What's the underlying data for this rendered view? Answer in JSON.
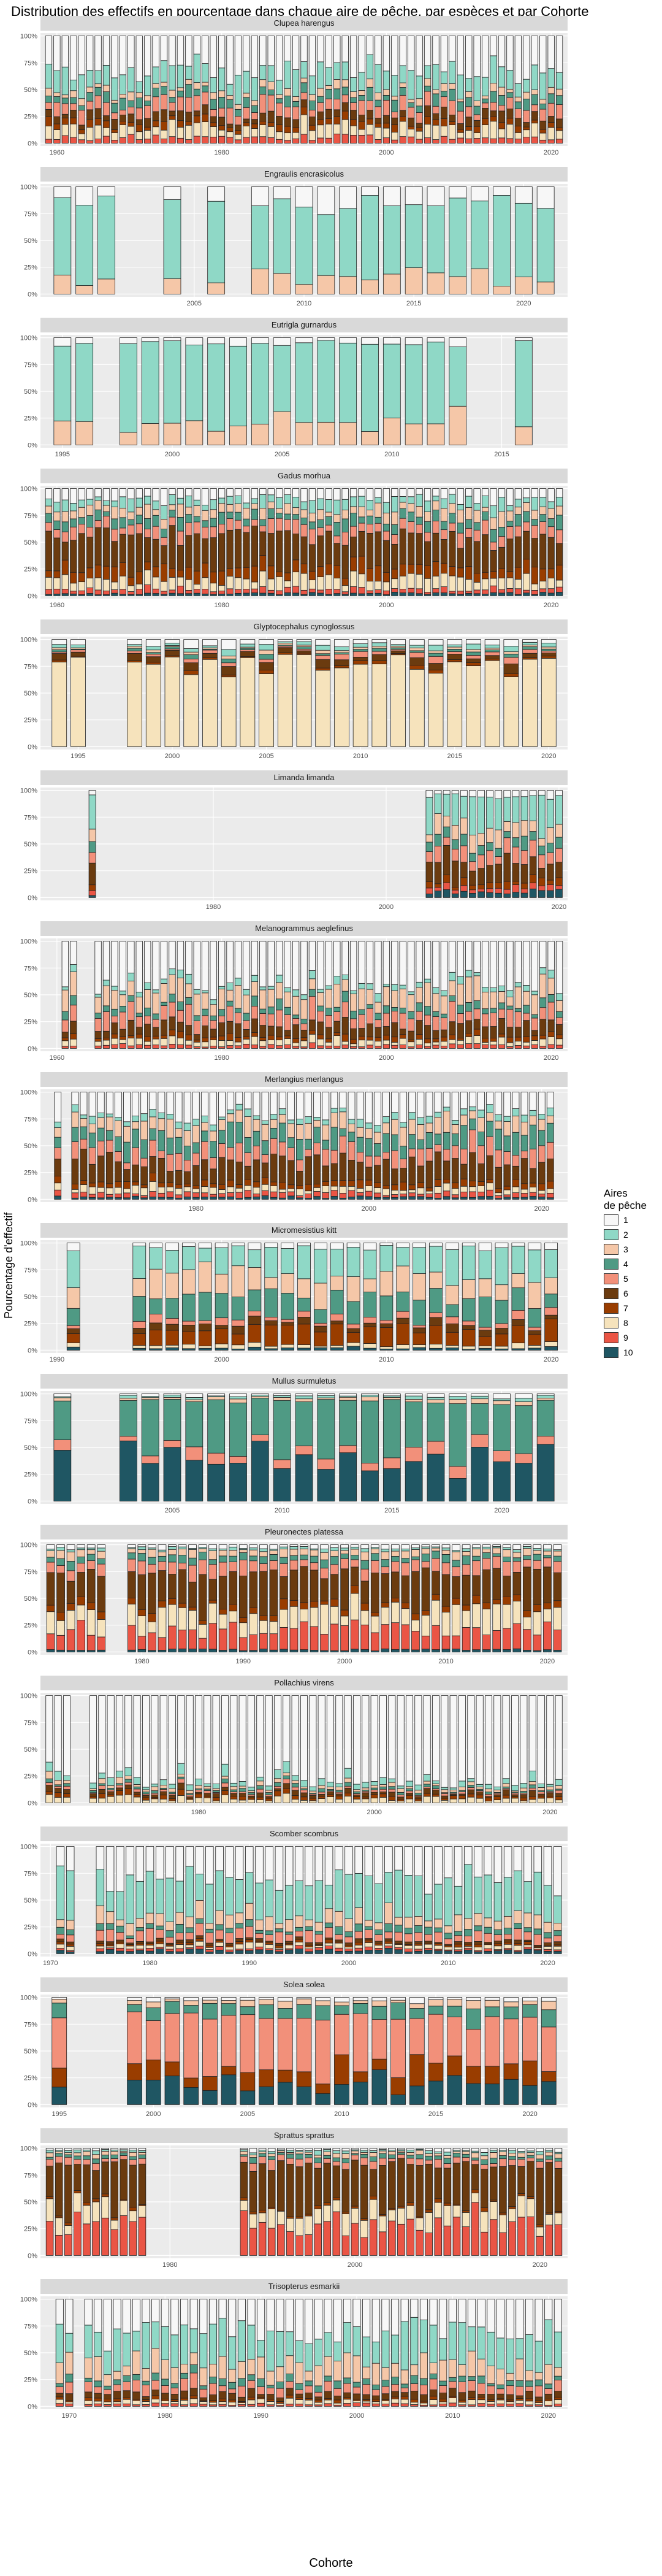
{
  "chart_data": {
    "type": "bar",
    "title": "Distribution des effectifs en pourcentage dans chaque aire de pêche, par espèces et par Cohorte",
    "xlabel": "Cohorte",
    "ylabel": "Pourcentage d'effectif",
    "y_ticks": [
      "0%",
      "25%",
      "50%",
      "75%",
      "100%"
    ],
    "legend": {
      "title": "Aires\nde pêche",
      "position": "right",
      "items": [
        {
          "label": "1",
          "color": "#f7f7f7"
        },
        {
          "label": "2",
          "color": "#8fd8c6"
        },
        {
          "label": "3",
          "color": "#f5c7a8"
        },
        {
          "label": "4",
          "color": "#4f9a84"
        },
        {
          "label": "5",
          "color": "#f2907a"
        },
        {
          "label": "6",
          "color": "#6b3b0f"
        },
        {
          "label": "7",
          "color": "#993d00"
        },
        {
          "label": "8",
          "color": "#f6e3bc"
        },
        {
          "label": "9",
          "color": "#ea5545"
        },
        {
          "label": "10",
          "color": "#1f5663"
        }
      ]
    },
    "panels": [
      {
        "species": "Clupea harengus",
        "xlim": [
          1958,
          2022
        ],
        "xticks": [
          1960,
          1980,
          2000,
          2020
        ],
        "cohorts": [
          [
            1959,
            2021
          ]
        ],
        "gaps": [],
        "profile": "A"
      },
      {
        "species": "Engraulis encrasicolus",
        "xlim": [
          1998,
          2022
        ],
        "xticks": [
          2005,
          2010,
          2015,
          2020
        ],
        "cohorts": [
          [
            1999,
            2021
          ]
        ],
        "gaps": [
          2002,
          2003,
          2005,
          2007
        ],
        "profile": "B"
      },
      {
        "species": "Eutrigla gurnardus",
        "xlim": [
          1994,
          2018
        ],
        "xticks": [
          1995,
          2000,
          2005,
          2010,
          2015
        ],
        "cohorts": [
          [
            1995,
            2016
          ]
        ],
        "gaps": [
          1997,
          2014,
          2015
        ],
        "profile": "C"
      },
      {
        "species": "Gadus morhua",
        "xlim": [
          1958,
          2022
        ],
        "xticks": [
          1960,
          1980,
          2000,
          2020
        ],
        "cohorts": [
          [
            1959,
            2021
          ]
        ],
        "gaps": [],
        "profile": "D"
      },
      {
        "species": "Glyptocephalus cynoglossus",
        "xlim": [
          1993,
          2021
        ],
        "xticks": [
          1995,
          2000,
          2005,
          2010,
          2015,
          2020
        ],
        "cohorts": [
          [
            1994,
            2020
          ]
        ],
        "gaps": [
          1996,
          1997
        ],
        "profile": "E"
      },
      {
        "species": "Limanda limanda",
        "xlim": [
          1960,
          2021
        ],
        "xticks": [
          1980,
          2000,
          2020
        ],
        "cohorts": [
          [
            1966,
            1966
          ],
          [
            2005,
            2020
          ]
        ],
        "gaps": [],
        "profile": "F"
      },
      {
        "species": "Melanogrammus aeglefinus",
        "xlim": [
          1958,
          2022
        ],
        "xticks": [
          1960,
          1980,
          2000,
          2020
        ],
        "cohorts": [
          [
            1961,
            1962
          ],
          [
            1965,
            2021
          ]
        ],
        "gaps": [],
        "profile": "G"
      },
      {
        "species": "Merlangius merlangus",
        "xlim": [
          1962,
          2023
        ],
        "xticks": [
          1980,
          2000,
          2020
        ],
        "cohorts": [
          [
            1964,
            1964
          ],
          [
            1966,
            2021
          ]
        ],
        "gaps": [],
        "profile": "H"
      },
      {
        "species": "Micromesistius kitt",
        "xlim": [
          1989,
          2021
        ],
        "xticks": [
          1990,
          2000,
          2010,
          2020
        ],
        "cohorts": [
          [
            1991,
            2020
          ]
        ],
        "gaps": [
          1992,
          1993,
          1994
        ],
        "profile": "I"
      },
      {
        "species": "Mullus surmuletus",
        "xlim": [
          1999,
          2023
        ],
        "xticks": [
          2005,
          2010,
          2015,
          2020
        ],
        "cohorts": [
          [
            2000,
            2022
          ]
        ],
        "gaps": [
          2001,
          2002
        ],
        "profile": "J"
      },
      {
        "species": "Pleuronectes platessa",
        "xlim": [
          1970,
          2022
        ],
        "xticks": [
          1980,
          1990,
          2000,
          2010,
          2020
        ],
        "cohorts": [
          [
            1971,
            2021
          ]
        ],
        "gaps": [
          1977,
          1978
        ],
        "profile": "K"
      },
      {
        "species": "Pollachius virens",
        "xlim": [
          1962,
          2022
        ],
        "xticks": [
          1980,
          2000,
          2020
        ],
        "cohorts": [
          [
            1963,
            1965
          ],
          [
            1968,
            2021
          ]
        ],
        "gaps": [],
        "profile": "L"
      },
      {
        "species": "Scomber scombrus",
        "xlim": [
          1969,
          2022
        ],
        "xticks": [
          1970,
          1980,
          1990,
          2000,
          2010,
          2020
        ],
        "cohorts": [
          [
            1971,
            2021
          ]
        ],
        "gaps": [
          1973,
          1974
        ],
        "profile": "M"
      },
      {
        "species": "Solea solea",
        "xlim": [
          1994,
          2022
        ],
        "xticks": [
          1995,
          2000,
          2005,
          2010,
          2015,
          2020
        ],
        "cohorts": [
          [
            1995,
            1995
          ],
          [
            1999,
            2021
          ]
        ],
        "gaps": [],
        "profile": "N"
      },
      {
        "species": "Sprattus sprattus",
        "xlim": [
          1966,
          2023
        ],
        "xticks": [
          1980,
          2000,
          2020
        ],
        "cohorts": [
          [
            1967,
            1977
          ],
          [
            1988,
            2022
          ]
        ],
        "gaps": [],
        "profile": "O"
      },
      {
        "species": "Trisopterus esmarkii",
        "xlim": [
          1967,
          2022
        ],
        "xticks": [
          1970,
          1980,
          1990,
          2000,
          2010,
          2020
        ],
        "cohorts": [
          [
            1969,
            1970
          ],
          [
            1972,
            2021
          ]
        ],
        "gaps": [
          1971
        ],
        "profile": "P"
      }
    ]
  }
}
